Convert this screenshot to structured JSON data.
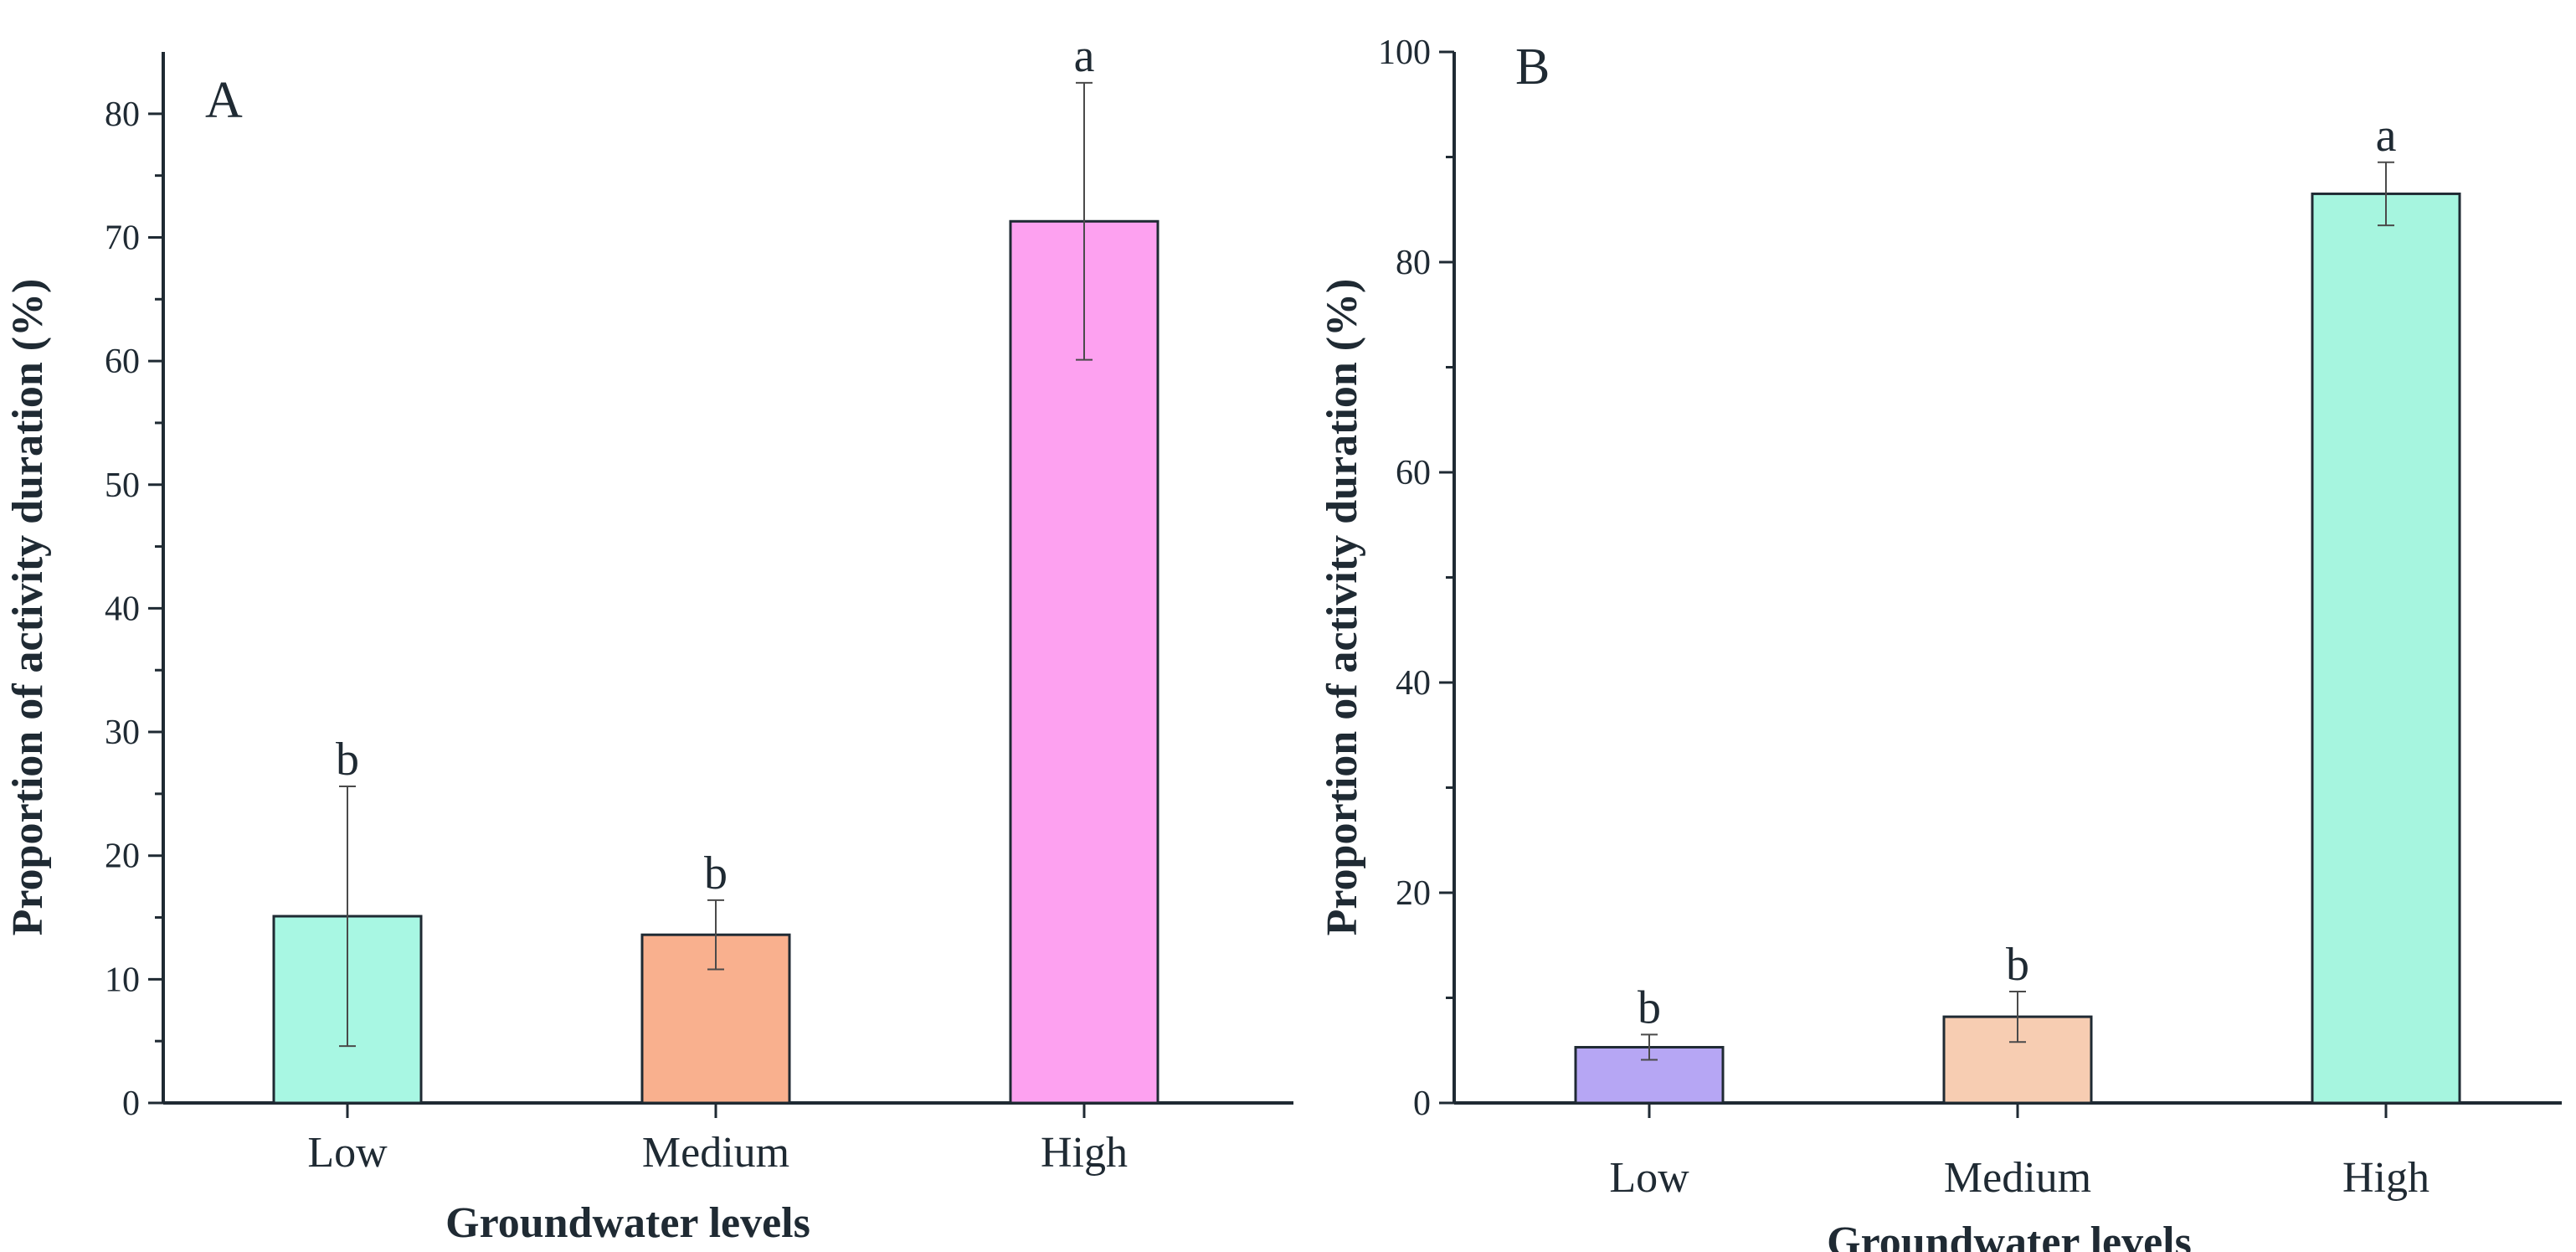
{
  "chart_data": [
    {
      "type": "bar",
      "panel": "A",
      "categories": [
        "Low",
        "Medium",
        "High"
      ],
      "values": [
        15.1,
        13.6,
        71.3
      ],
      "errors": [
        10.5,
        2.8,
        11.2
      ],
      "significance": [
        "b",
        "b",
        "a"
      ],
      "colors": [
        "#a8f7e3",
        "#f9b08e",
        "#fda1f0"
      ],
      "xlabel": "Groundwater levels",
      "ylabel": "Proportion of activity duration (%)",
      "ylim": [
        0,
        85
      ],
      "yticks": [
        0,
        10,
        20,
        30,
        40,
        50,
        60,
        70,
        80
      ]
    },
    {
      "type": "bar",
      "panel": "B",
      "categories": [
        "Low",
        "Medium",
        "High"
      ],
      "values": [
        5.3,
        8.2,
        86.5
      ],
      "errors": [
        1.2,
        2.4,
        3.0
      ],
      "significance": [
        "b",
        "b",
        "a"
      ],
      "colors": [
        "#b6a6f4",
        "#f7cdb2",
        "#a6f5df"
      ],
      "xlabel": "Groundwater levels",
      "ylabel": "Proportion of activity duration (%)",
      "ylim": [
        0,
        100
      ],
      "yticks": [
        0,
        20,
        40,
        60,
        80,
        100
      ]
    }
  ]
}
